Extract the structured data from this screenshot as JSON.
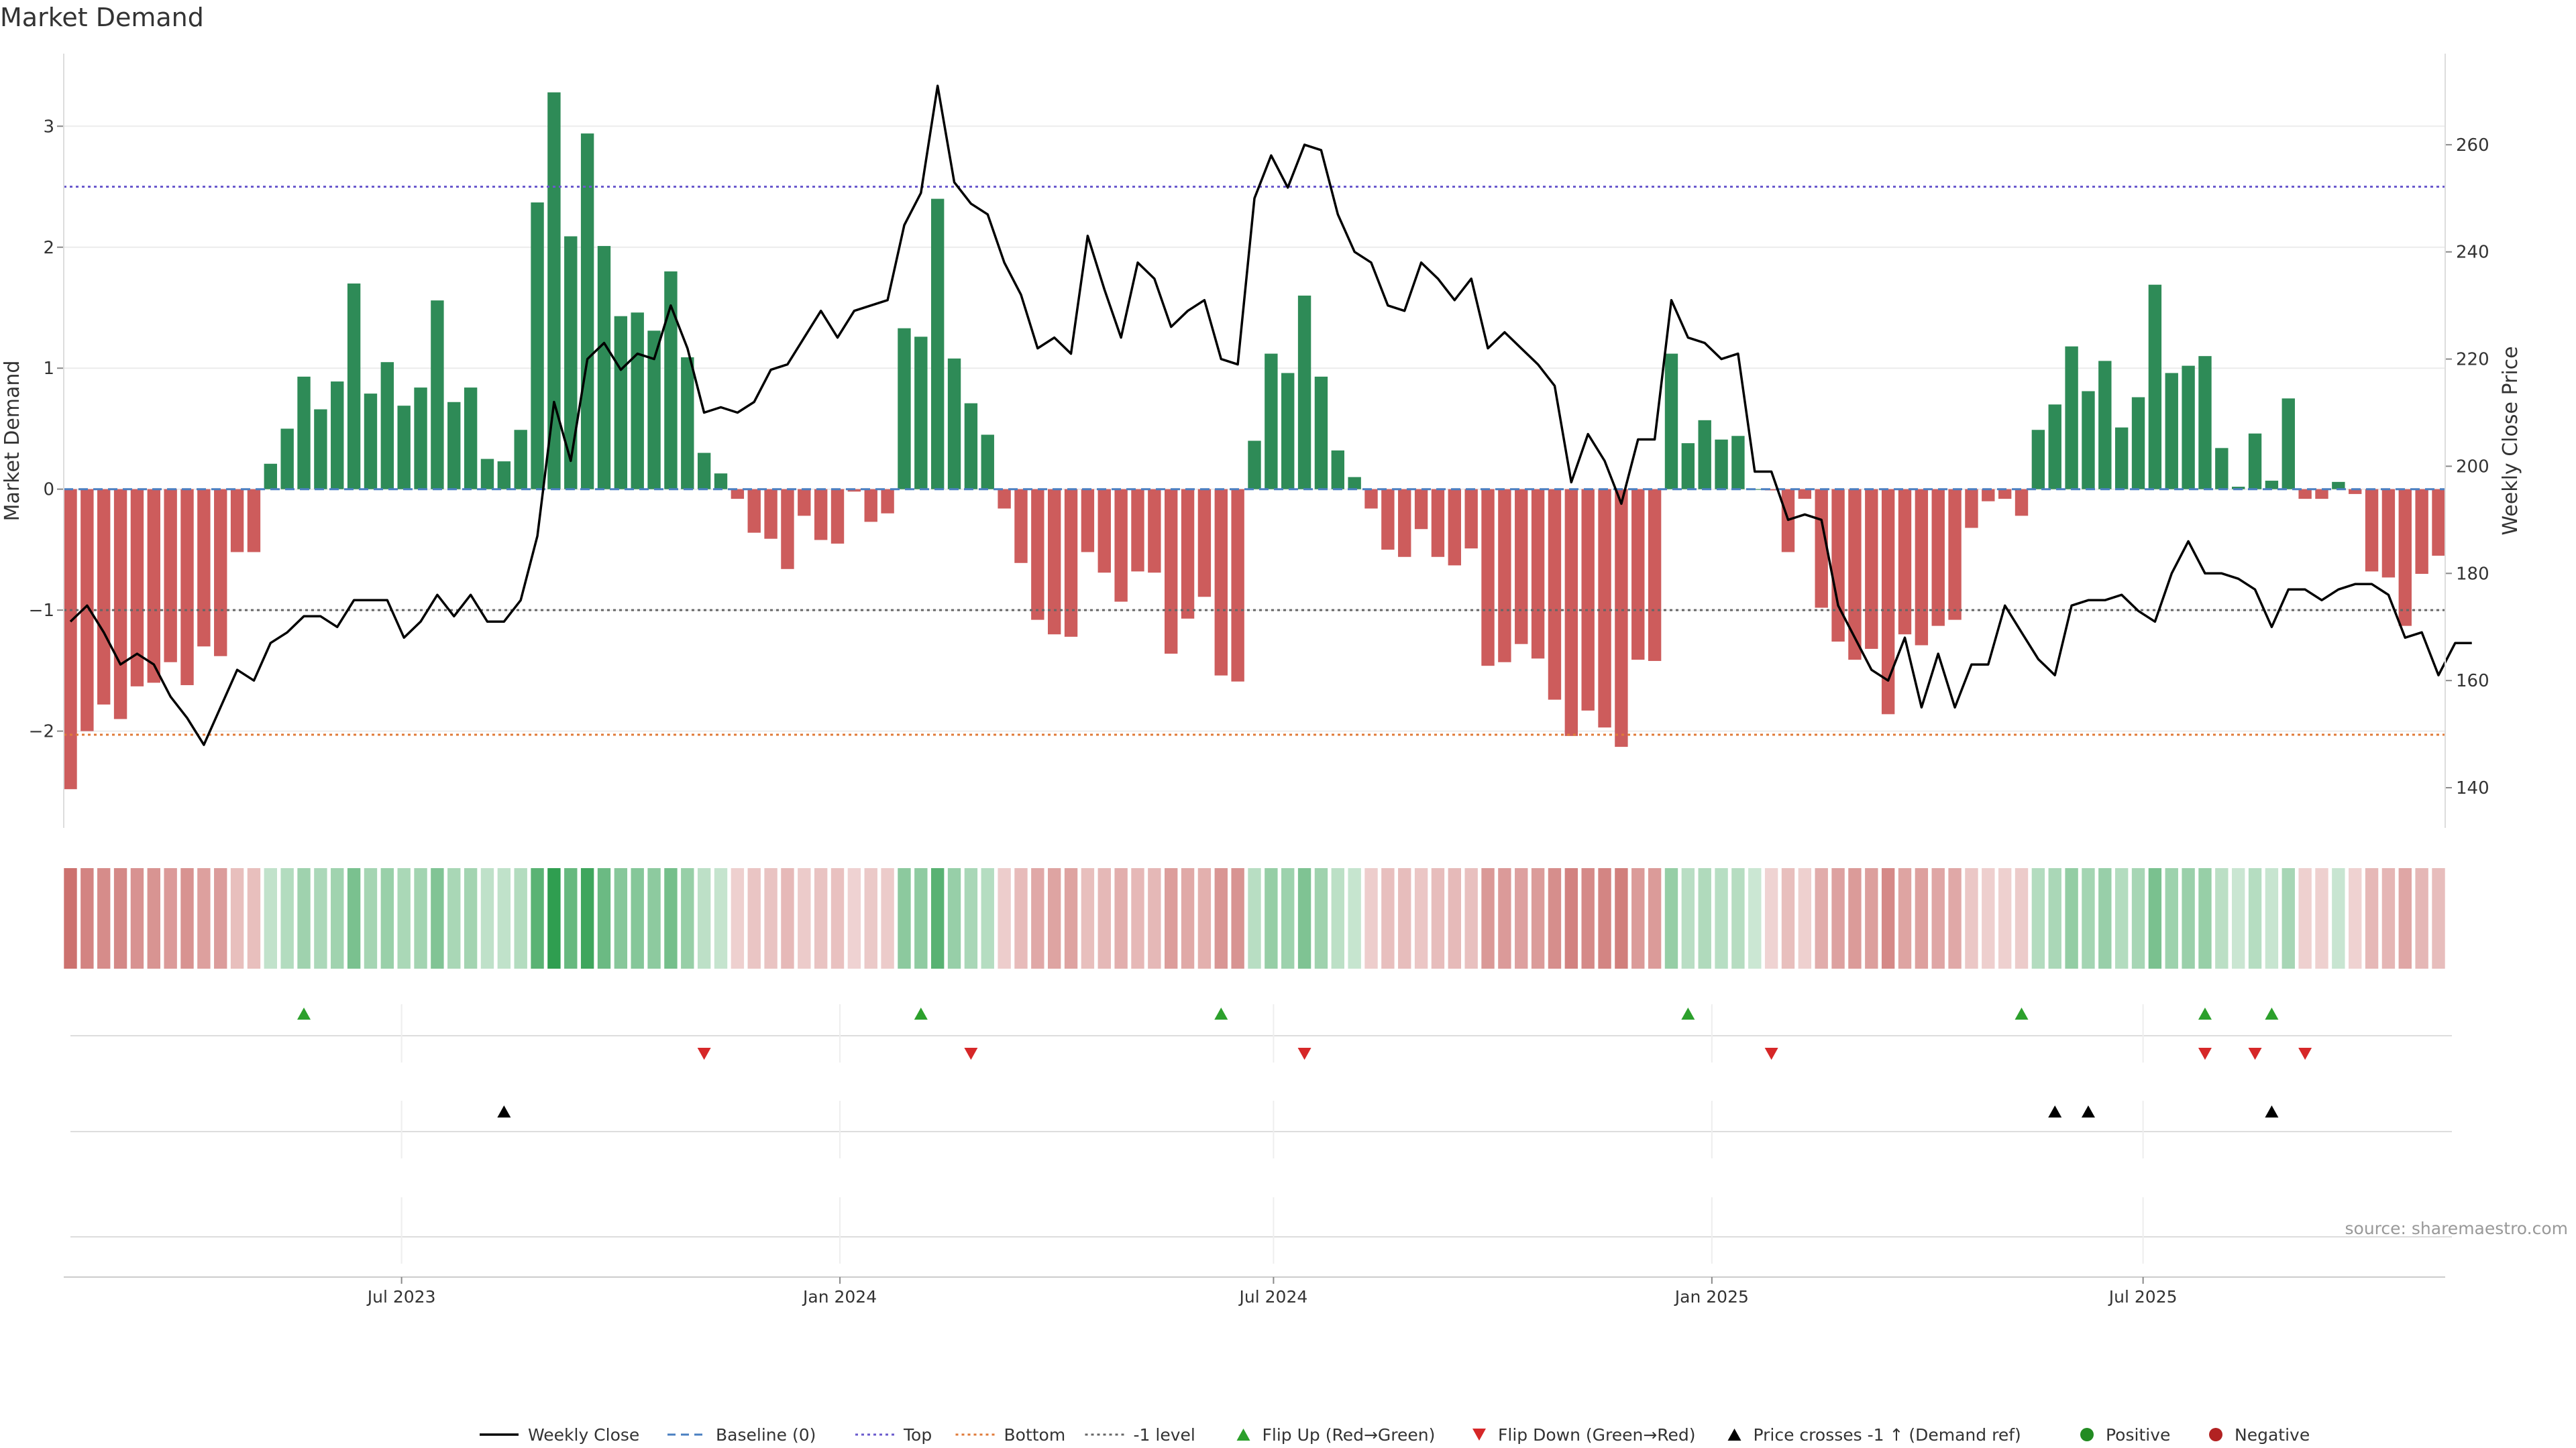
{
  "title": "Market Demand",
  "source": "source: sharemaestro.com",
  "colors": {
    "positive_bar": "#2e8b57",
    "negative_bar": "#cd5c5c",
    "price_line": "#000000",
    "top_line": "#6a5acd",
    "bottom_line": "#e07b39",
    "minus1_line": "#666666",
    "baseline": "#4a7fc1",
    "flip_up": "#2ca02c",
    "flip_down": "#d62728",
    "cross_marker": "#000000",
    "positive_dot": "#228b22",
    "negative_dot": "#b22222"
  },
  "chart_data": {
    "type": "bar",
    "title": "Market Demand",
    "ylabel": "Market Demand",
    "y2label": "Weekly Close Price",
    "ylim": [
      -2.8,
      3.6
    ],
    "y2lim": [
      132.5,
      277
    ],
    "yticks": [
      -2,
      -1,
      0,
      1,
      2,
      3
    ],
    "y2ticks": [
      140,
      160,
      180,
      200,
      220,
      240,
      260
    ],
    "x_start": "2023-02-12",
    "x_step_days": 7,
    "xticks": [
      {
        "date": "2023-07-01",
        "label": "Jul 2023"
      },
      {
        "date": "2024-01-01",
        "label": "Jan 2024"
      },
      {
        "date": "2024-07-01",
        "label": "Jul 2024"
      },
      {
        "date": "2025-01-01",
        "label": "Jan 2025"
      },
      {
        "date": "2025-07-01",
        "label": "Jul 2025"
      }
    ],
    "levels": {
      "top": 2.5,
      "bottom": -2.03,
      "minus1": -1.0,
      "baseline": 0
    },
    "demand": [
      -2.48,
      -2.0,
      -1.78,
      -1.9,
      -1.63,
      -1.6,
      -1.43,
      -1.62,
      -1.3,
      -1.38,
      -0.52,
      -0.52,
      0.21,
      0.5,
      0.93,
      0.66,
      0.89,
      1.7,
      0.79,
      1.05,
      0.69,
      0.84,
      1.56,
      0.72,
      0.84,
      0.25,
      0.23,
      0.49,
      2.37,
      3.28,
      2.09,
      2.94,
      2.01,
      1.43,
      1.46,
      1.31,
      1.8,
      1.09,
      0.3,
      0.13,
      -0.08,
      -0.36,
      -0.41,
      -0.66,
      -0.22,
      -0.42,
      -0.45,
      -0.02,
      -0.27,
      -0.2,
      1.33,
      1.26,
      2.4,
      1.08,
      0.71,
      0.45,
      -0.16,
      -0.61,
      -1.08,
      -1.2,
      -1.22,
      -0.52,
      -0.69,
      -0.93,
      -0.68,
      -0.69,
      -1.36,
      -1.07,
      -0.89,
      -1.54,
      -1.59,
      0.4,
      1.12,
      0.96,
      1.6,
      0.93,
      0.32,
      0.1,
      -0.16,
      -0.5,
      -0.56,
      -0.33,
      -0.56,
      -0.63,
      -0.49,
      -1.46,
      -1.43,
      -1.28,
      -1.4,
      -1.74,
      -2.04,
      -1.83,
      -1.97,
      -2.13,
      -1.41,
      -1.42,
      1.12,
      0.38,
      0.57,
      0.41,
      0.44,
      0,
      -0.01,
      -0.52,
      -0.08,
      -0.98,
      -1.26,
      -1.41,
      -1.32,
      -1.86,
      -1.2,
      -1.29,
      -1.13,
      -1.08,
      -0.32,
      -0.1,
      -0.08,
      -0.22,
      0.49,
      0.7,
      1.18,
      0.81,
      1.06,
      0.51,
      0.76,
      1.69,
      0.96,
      1.02,
      1.1,
      0.34,
      0.02,
      0.46,
      0.07,
      0.75,
      -0.08,
      -0.08,
      0.06,
      -0.04,
      -0.68,
      -0.73,
      -1.13,
      -0.7,
      -0.55
    ],
    "price": [
      171,
      174,
      169,
      163,
      165,
      163,
      157,
      153,
      148,
      155,
      162,
      160,
      167,
      169,
      172,
      172,
      170,
      175,
      175,
      175,
      168,
      171,
      176,
      172,
      176,
      171,
      171,
      175,
      187,
      212,
      201,
      220,
      223,
      218,
      221,
      220,
      230,
      222,
      210,
      211,
      210,
      212,
      218,
      219,
      224,
      229,
      224,
      229,
      230,
      231,
      245,
      251,
      271,
      253,
      249,
      247,
      238,
      232,
      222,
      224,
      221,
      243,
      233,
      224,
      238,
      235,
      226,
      229,
      231,
      220,
      219,
      250,
      258,
      252,
      260,
      259,
      247,
      240,
      238,
      230,
      229,
      238,
      235,
      231,
      235,
      222,
      225,
      222,
      219,
      215,
      197,
      206,
      201,
      193,
      205,
      205,
      231,
      224,
      223,
      220,
      221,
      199,
      199,
      190,
      191,
      190,
      174,
      168,
      162,
      160,
      168,
      155,
      165,
      155,
      163,
      163,
      174,
      169,
      164,
      161,
      174,
      175,
      175,
      176,
      173,
      171,
      180,
      186,
      180,
      180,
      179,
      177,
      170,
      177,
      177,
      175,
      177,
      178,
      178,
      176,
      168,
      169,
      161,
      167,
      167
    ],
    "flip_up": [
      "2023-05-21",
      "2024-02-04",
      "2024-06-09",
      "2024-12-22",
      "2025-05-11",
      "2025-07-27",
      "2025-08-24"
    ],
    "flip_down": [
      "2023-11-05",
      "2024-02-25",
      "2024-07-14",
      "2025-01-26",
      "2025-07-27",
      "2025-08-17",
      "2025-09-07"
    ],
    "price_cross_up": [
      "2023-08-13",
      "2025-05-25",
      "2025-06-08",
      "2025-08-24"
    ],
    "legend": [
      "Weekly Close",
      "Baseline (0)",
      "Top",
      "Bottom",
      "-1 level",
      "Flip Up (Red→Green)",
      "Flip Down (Green→Red)",
      "Price crosses -1 ↑ (Demand ref)",
      "Positive",
      "Negative"
    ]
  }
}
